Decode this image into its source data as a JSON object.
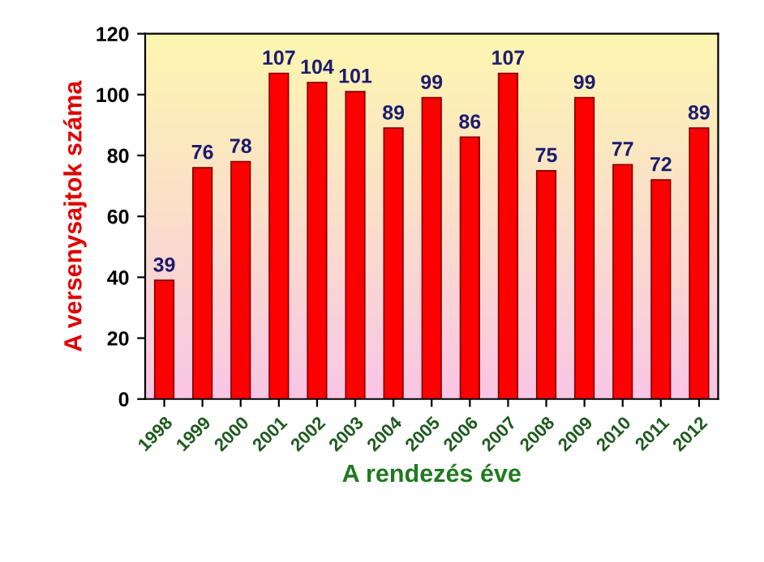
{
  "chart_data": {
    "type": "bar",
    "xlabel": "A rendezés éve",
    "ylabel": "A versenysajtok száma",
    "categories": [
      "1998",
      "1999",
      "2000",
      "2001",
      "2002",
      "2003",
      "2004",
      "2005",
      "2006",
      "2007",
      "2008",
      "2009",
      "2010",
      "2011",
      "2012"
    ],
    "values": [
      39,
      76,
      78,
      107,
      104,
      101,
      89,
      99,
      86,
      107,
      75,
      99,
      77,
      72,
      89
    ],
    "color": "#ff0000",
    "ylim": [
      0,
      120
    ],
    "yticks": [
      0,
      20,
      40,
      60,
      80,
      100,
      120
    ],
    "data_labels": true,
    "grid": false,
    "legend": false
  }
}
